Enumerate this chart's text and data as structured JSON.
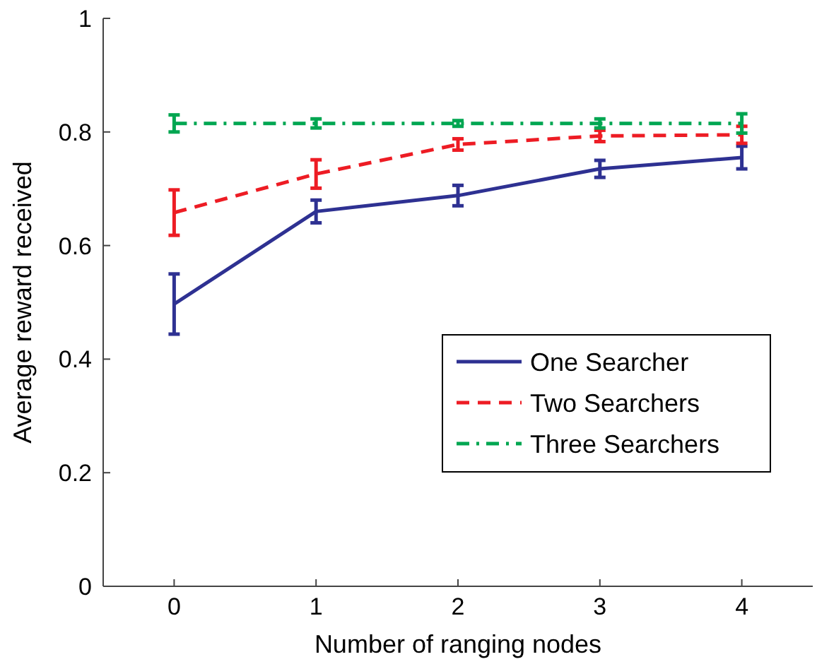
{
  "chart_data": {
    "type": "line",
    "xlabel": "Number of ranging nodes",
    "ylabel": "Average reward received",
    "x": [
      0,
      1,
      2,
      3,
      4
    ],
    "xlim": [
      -0.5,
      4.5
    ],
    "xticks": [
      0,
      1,
      2,
      3,
      4
    ],
    "ylim": [
      0,
      1
    ],
    "yticks": [
      0,
      0.2,
      0.4,
      0.6,
      0.8,
      1
    ],
    "legend": "right",
    "grid": false,
    "marker": "none",
    "series": [
      {
        "name": "One Searcher",
        "color": "#2e3192",
        "line_style": "solid",
        "values": [
          0.497,
          0.66,
          0.688,
          0.735,
          0.755
        ],
        "errors": [
          0.053,
          0.02,
          0.018,
          0.015,
          0.02
        ]
      },
      {
        "name": "Two Searchers",
        "color": "#ed1c24",
        "line_style": "dashed",
        "values": [
          0.658,
          0.726,
          0.778,
          0.793,
          0.795
        ],
        "errors": [
          0.04,
          0.025,
          0.01,
          0.01,
          0.015
        ]
      },
      {
        "name": "Three Searchers",
        "color": "#00a651",
        "line_style": "dashdot",
        "values": [
          0.815,
          0.815,
          0.815,
          0.815,
          0.815
        ],
        "errors": [
          0.015,
          0.008,
          0.005,
          0.008,
          0.017
        ]
      }
    ]
  }
}
